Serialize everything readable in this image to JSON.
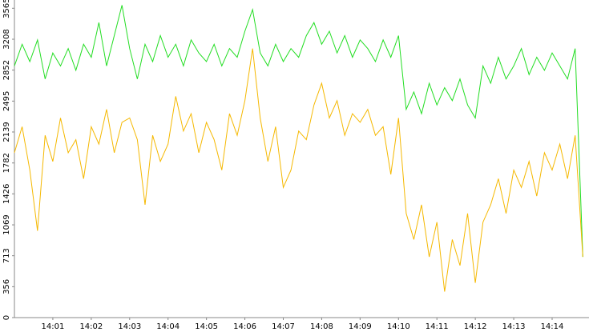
{
  "chart_data": {
    "type": "line",
    "x": [
      0,
      0.2,
      0.4,
      0.6,
      0.8,
      1,
      1.2,
      1.4,
      1.6,
      1.8,
      2,
      2.2,
      2.4,
      2.6,
      2.8,
      3,
      3.2,
      3.4,
      3.6,
      3.8,
      4,
      4.2,
      4.4,
      4.6,
      4.8,
      5,
      5.2,
      5.4,
      5.6,
      5.8,
      6,
      6.2,
      6.4,
      6.6,
      6.8,
      7,
      7.2,
      7.4,
      7.6,
      7.8,
      8,
      8.2,
      8.4,
      8.6,
      8.8,
      9,
      9.2,
      9.4,
      9.6,
      9.8,
      10,
      10.2,
      10.4,
      10.6,
      10.8,
      11,
      11.2,
      11.4,
      11.6,
      11.8,
      12,
      12.2,
      12.4,
      12.6,
      12.8,
      13,
      13.2,
      13.4,
      13.6,
      13.8,
      14,
      14.2,
      14.4,
      14.6,
      14.8
    ],
    "series": [
      {
        "color": "#22dd22",
        "values": [
          2900,
          3150,
          2950,
          3200,
          2750,
          3050,
          2900,
          3100,
          2850,
          3150,
          3000,
          3400,
          2900,
          3250,
          3600,
          3100,
          2750,
          3150,
          2950,
          3250,
          3000,
          3150,
          2900,
          3200,
          3050,
          2950,
          3150,
          2900,
          3100,
          3000,
          3300,
          3550,
          3050,
          2900,
          3150,
          2950,
          3100,
          3000,
          3250,
          3400,
          3150,
          3300,
          3050,
          3250,
          3000,
          3200,
          3100,
          2950,
          3200,
          3000,
          3250,
          2400,
          2600,
          2350,
          2700,
          2450,
          2650,
          2500,
          2750,
          2450,
          2300,
          2900,
          2700,
          3000,
          2750,
          2900,
          3100,
          2800,
          3000,
          2850,
          3050,
          2900,
          2750,
          3100,
          700
        ]
      },
      {
        "color": "#f5b800",
        "values": [
          1900,
          2200,
          1700,
          1000,
          2100,
          1800,
          2300,
          1900,
          2050,
          1600,
          2200,
          2000,
          2400,
          1900,
          2250,
          2300,
          2050,
          1300,
          2100,
          1800,
          2000,
          2550,
          2150,
          2350,
          1900,
          2250,
          2050,
          1700,
          2350,
          2100,
          2500,
          3100,
          2300,
          1800,
          2200,
          1500,
          1700,
          2150,
          2050,
          2450,
          2700,
          2300,
          2500,
          2100,
          2350,
          2250,
          2400,
          2100,
          2200,
          1650,
          2300,
          1200,
          900,
          1300,
          700,
          1100,
          300,
          900,
          600,
          1200,
          400,
          1100,
          1300,
          1600,
          1200,
          1700,
          1500,
          1800,
          1400,
          1900,
          1700,
          2000,
          1600,
          2100,
          700
        ]
      }
    ],
    "xlim": [
      0,
      14.96
    ],
    "xticks": [
      {
        "value": 1,
        "label": "14:01"
      },
      {
        "value": 2,
        "label": "14:02"
      },
      {
        "value": 3,
        "label": "14:03"
      },
      {
        "value": 4,
        "label": "14:04"
      },
      {
        "value": 5,
        "label": "14:05"
      },
      {
        "value": 6,
        "label": "14:06"
      },
      {
        "value": 7,
        "label": "14:07"
      },
      {
        "value": 8,
        "label": "14:08"
      },
      {
        "value": 9,
        "label": "14:09"
      },
      {
        "value": 10,
        "label": "14:10"
      },
      {
        "value": 11,
        "label": "14:11"
      },
      {
        "value": 12,
        "label": "14:12"
      },
      {
        "value": 13,
        "label": "14:13"
      },
      {
        "value": 14,
        "label": "14:14"
      }
    ],
    "ylim": [
      0,
      3660
    ],
    "yticks": [
      0,
      356,
      713,
      1069,
      1426,
      1782,
      2139,
      2495,
      2852,
      3208,
      3565
    ]
  }
}
